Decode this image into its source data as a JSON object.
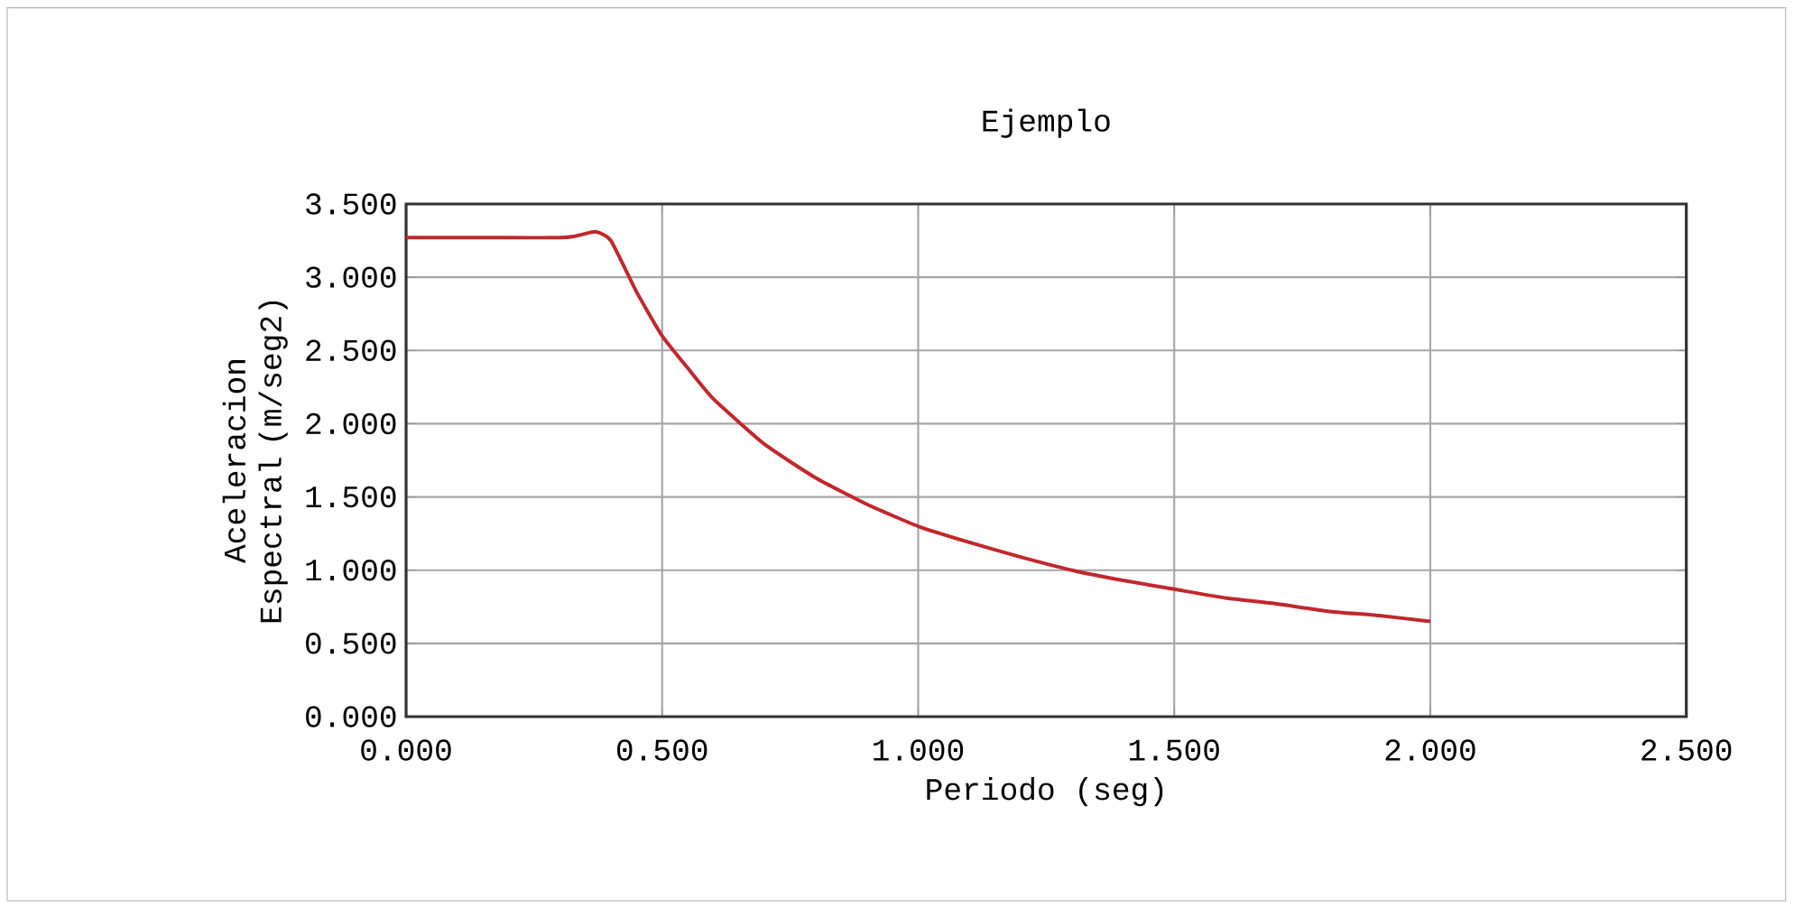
{
  "chart_data": {
    "type": "line",
    "title": "Ejemplo",
    "xlabel": "Periodo (seg)",
    "ylabel": "Aceleracion Espectral (m/seg2)",
    "x": [
      0,
      0.1,
      0.2,
      0.3,
      0.33,
      0.37,
      0.4,
      0.45,
      0.5,
      0.55,
      0.6,
      0.7,
      0.8,
      0.9,
      1.0,
      1.1,
      1.2,
      1.3,
      1.4,
      1.5,
      1.6,
      1.7,
      1.8,
      1.9,
      2.0
    ],
    "values": [
      3.27,
      3.27,
      3.27,
      3.27,
      3.28,
      3.31,
      3.25,
      2.9,
      2.6,
      2.38,
      2.17,
      1.86,
      1.63,
      1.45,
      1.3,
      1.19,
      1.09,
      1.0,
      0.93,
      0.87,
      0.81,
      0.77,
      0.72,
      0.69,
      0.65
    ],
    "color": "#c0282d",
    "xlim": [
      0,
      2.5
    ],
    "ylim": [
      0,
      3.5
    ],
    "xticks": [
      {
        "value": 0,
        "label": "0.000"
      },
      {
        "value": 0.5,
        "label": "0.500"
      },
      {
        "value": 1,
        "label": "1.000"
      },
      {
        "value": 1.5,
        "label": "1.500"
      },
      {
        "value": 2,
        "label": "2.000"
      },
      {
        "value": 2.5,
        "label": "2.500"
      }
    ],
    "yticks": [
      {
        "value": 0,
        "label": "0.000"
      },
      {
        "value": 0.5,
        "label": "0.500"
      },
      {
        "value": 1,
        "label": "1.000"
      },
      {
        "value": 1.5,
        "label": "1.500"
      },
      {
        "value": 2,
        "label": "2.000"
      },
      {
        "value": 2.5,
        "label": "2.500"
      },
      {
        "value": 3,
        "label": "3.000"
      },
      {
        "value": 3.5,
        "label": "3.500"
      }
    ],
    "grid": true,
    "marker": "none",
    "line_style": "solid"
  }
}
